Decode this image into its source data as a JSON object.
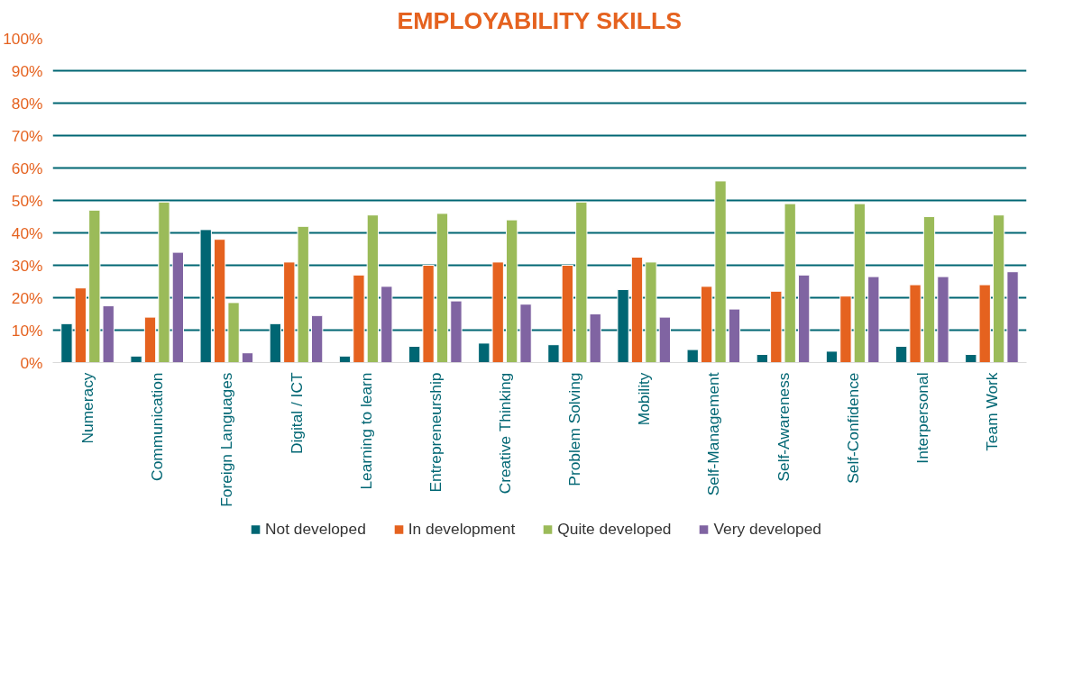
{
  "chart_data": {
    "type": "bar",
    "title": "EMPLOYABILITY SKILLS",
    "categories": [
      "Numeracy",
      "Communication",
      "Foreign Languages",
      "Digital / ICT",
      "Learning to learn",
      "Entrepreneurship",
      "Creative Thinking",
      "Problem Solving",
      "Mobility",
      "Self-Management",
      "Self-Awareness",
      "Self-Confidence",
      "Interpersonal",
      "Team Work"
    ],
    "series": [
      {
        "name": "Not developed",
        "color": "#006673",
        "values": [
          12,
          2,
          41,
          12,
          2,
          5,
          6,
          5.5,
          22.5,
          4,
          2.5,
          3.5,
          5,
          2.5
        ]
      },
      {
        "name": "In development",
        "color": "#e5621f",
        "values": [
          23,
          14,
          38,
          31,
          27,
          30,
          31,
          30,
          32.5,
          23.5,
          22,
          20.5,
          24,
          24
        ]
      },
      {
        "name": "Quite developed",
        "color": "#9bbb59",
        "values": [
          47,
          49.5,
          18.5,
          42,
          45.5,
          46,
          44,
          49.5,
          31,
          56,
          49,
          49,
          45,
          45.5
        ]
      },
      {
        "name": "Very developed",
        "color": "#8064a2",
        "values": [
          17.5,
          34,
          3,
          14.5,
          23.5,
          19,
          18,
          15,
          14,
          16.5,
          27,
          26.5,
          26.5,
          28
        ]
      }
    ],
    "ylim": [
      0,
      100
    ],
    "yticks": [
      {
        "value": 0,
        "label": "0%"
      },
      {
        "value": 10,
        "label": "10%"
      },
      {
        "value": 20,
        "label": "20%"
      },
      {
        "value": 30,
        "label": "30%"
      },
      {
        "value": 40,
        "label": "40%"
      },
      {
        "value": 50,
        "label": "50%"
      },
      {
        "value": 60,
        "label": "60%"
      },
      {
        "value": 70,
        "label": "70%"
      },
      {
        "value": 80,
        "label": "80%"
      },
      {
        "value": 90,
        "label": "90%"
      },
      {
        "value": 100,
        "label": "100%"
      }
    ],
    "grid": "y",
    "legend": "bottom"
  }
}
